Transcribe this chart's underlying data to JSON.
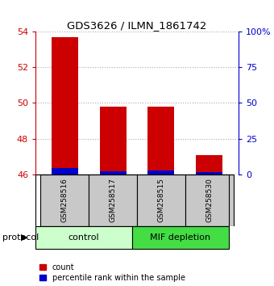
{
  "title": "GDS3626 / ILMN_1861742",
  "samples": [
    "GSM258516",
    "GSM258517",
    "GSM258515",
    "GSM258530"
  ],
  "red_values": [
    53.7,
    49.8,
    49.8,
    47.1
  ],
  "blue_values": [
    46.38,
    46.18,
    46.22,
    46.12
  ],
  "bar_bottom": 46.0,
  "red_color": "#cc0000",
  "blue_color": "#0000cc",
  "ylim_left": [
    46,
    54
  ],
  "ylim_right": [
    0,
    100
  ],
  "left_ticks": [
    46,
    48,
    50,
    52,
    54
  ],
  "right_ticks": [
    0,
    25,
    50,
    75,
    100
  ],
  "right_tick_labels": [
    "0",
    "25",
    "50",
    "75",
    "100%"
  ],
  "bar_width": 0.55,
  "left_tick_color": "#cc0000",
  "right_tick_color": "#0000cc",
  "legend_count": "count",
  "legend_percentile": "percentile rank within the sample",
  "sample_box_color": "#c8c8c8",
  "control_color": "#ccffcc",
  "mif_color": "#44dd44",
  "grid_color": "#aaaaaa",
  "control_label": "control",
  "mif_label": "MIF depletion",
  "protocol_label": "protocol",
  "n_control": 2,
  "n_mif": 2
}
